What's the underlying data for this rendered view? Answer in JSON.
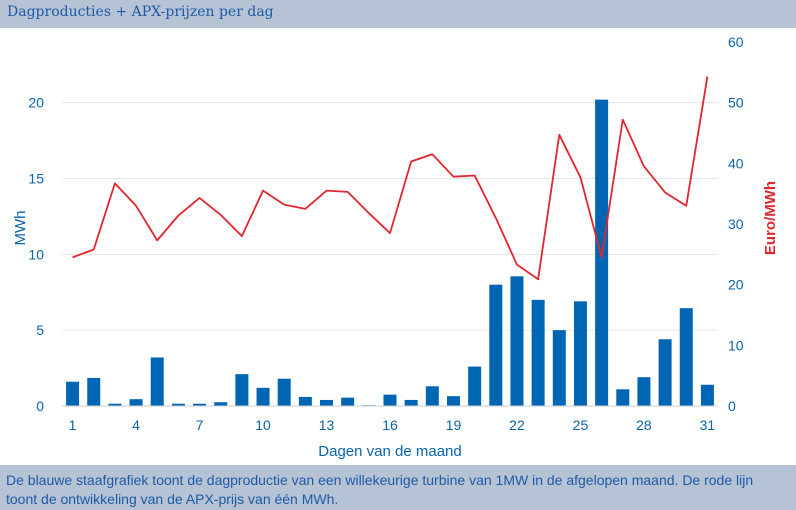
{
  "header": {
    "title": "Dagproducties + APX-prijzen per dag"
  },
  "footer": {
    "caption": "De blauwe staafgrafiek toont de dagproductie van een willekeurige turbine van 1MW in de afgelopen maand. De rode lijn toont de ontwikkeling van de APX-prijs van één MWh."
  },
  "colors": {
    "bar": "#0066b3",
    "line": "#e0262f",
    "left_axis": "#0a64ad",
    "right_axis": "#e0262f",
    "grid": "#e6e6e6",
    "band": "#b5c3d5"
  },
  "chart_data": {
    "type": "bar",
    "xlabel": "Dagen van de maand",
    "ylabel": "MWh",
    "y2label": "Euro/MWh",
    "ylim": [
      0,
      24
    ],
    "y2lim": [
      0,
      60
    ],
    "x": [
      1,
      2,
      3,
      4,
      5,
      6,
      7,
      8,
      9,
      10,
      11,
      12,
      13,
      14,
      15,
      16,
      17,
      18,
      19,
      20,
      21,
      22,
      23,
      24,
      25,
      26,
      27,
      28,
      29,
      30,
      31
    ],
    "x_ticks": [
      1,
      4,
      7,
      10,
      13,
      16,
      19,
      22,
      25,
      28,
      31
    ],
    "y_ticks": [
      0,
      5,
      10,
      15,
      20
    ],
    "y2_ticks": [
      0,
      10,
      20,
      30,
      40,
      50,
      60
    ],
    "series": [
      {
        "name": "MWh",
        "type": "bar",
        "axis": "left",
        "values": [
          1.6,
          1.85,
          0.15,
          0.45,
          3.2,
          0.15,
          0.15,
          0.25,
          2.1,
          1.2,
          1.8,
          0.6,
          0.4,
          0.55,
          0.05,
          0.75,
          0.4,
          1.3,
          0.65,
          2.6,
          8.0,
          8.55,
          7.0,
          5.0,
          6.9,
          20.2,
          1.1,
          1.9,
          4.4,
          6.45,
          1.4
        ]
      },
      {
        "name": "Euro/MWh",
        "type": "line",
        "axis": "right",
        "values": [
          24.5,
          25.8,
          36.7,
          33.0,
          27.3,
          31.4,
          34.3,
          31.5,
          28.0,
          35.5,
          33.2,
          32.5,
          35.5,
          35.3,
          31.8,
          28.5,
          40.3,
          41.5,
          37.8,
          38.0,
          31.0,
          23.3,
          20.9,
          44.7,
          37.7,
          24.5,
          47.2,
          39.5,
          35.2,
          33.0,
          54.3
        ]
      }
    ]
  }
}
